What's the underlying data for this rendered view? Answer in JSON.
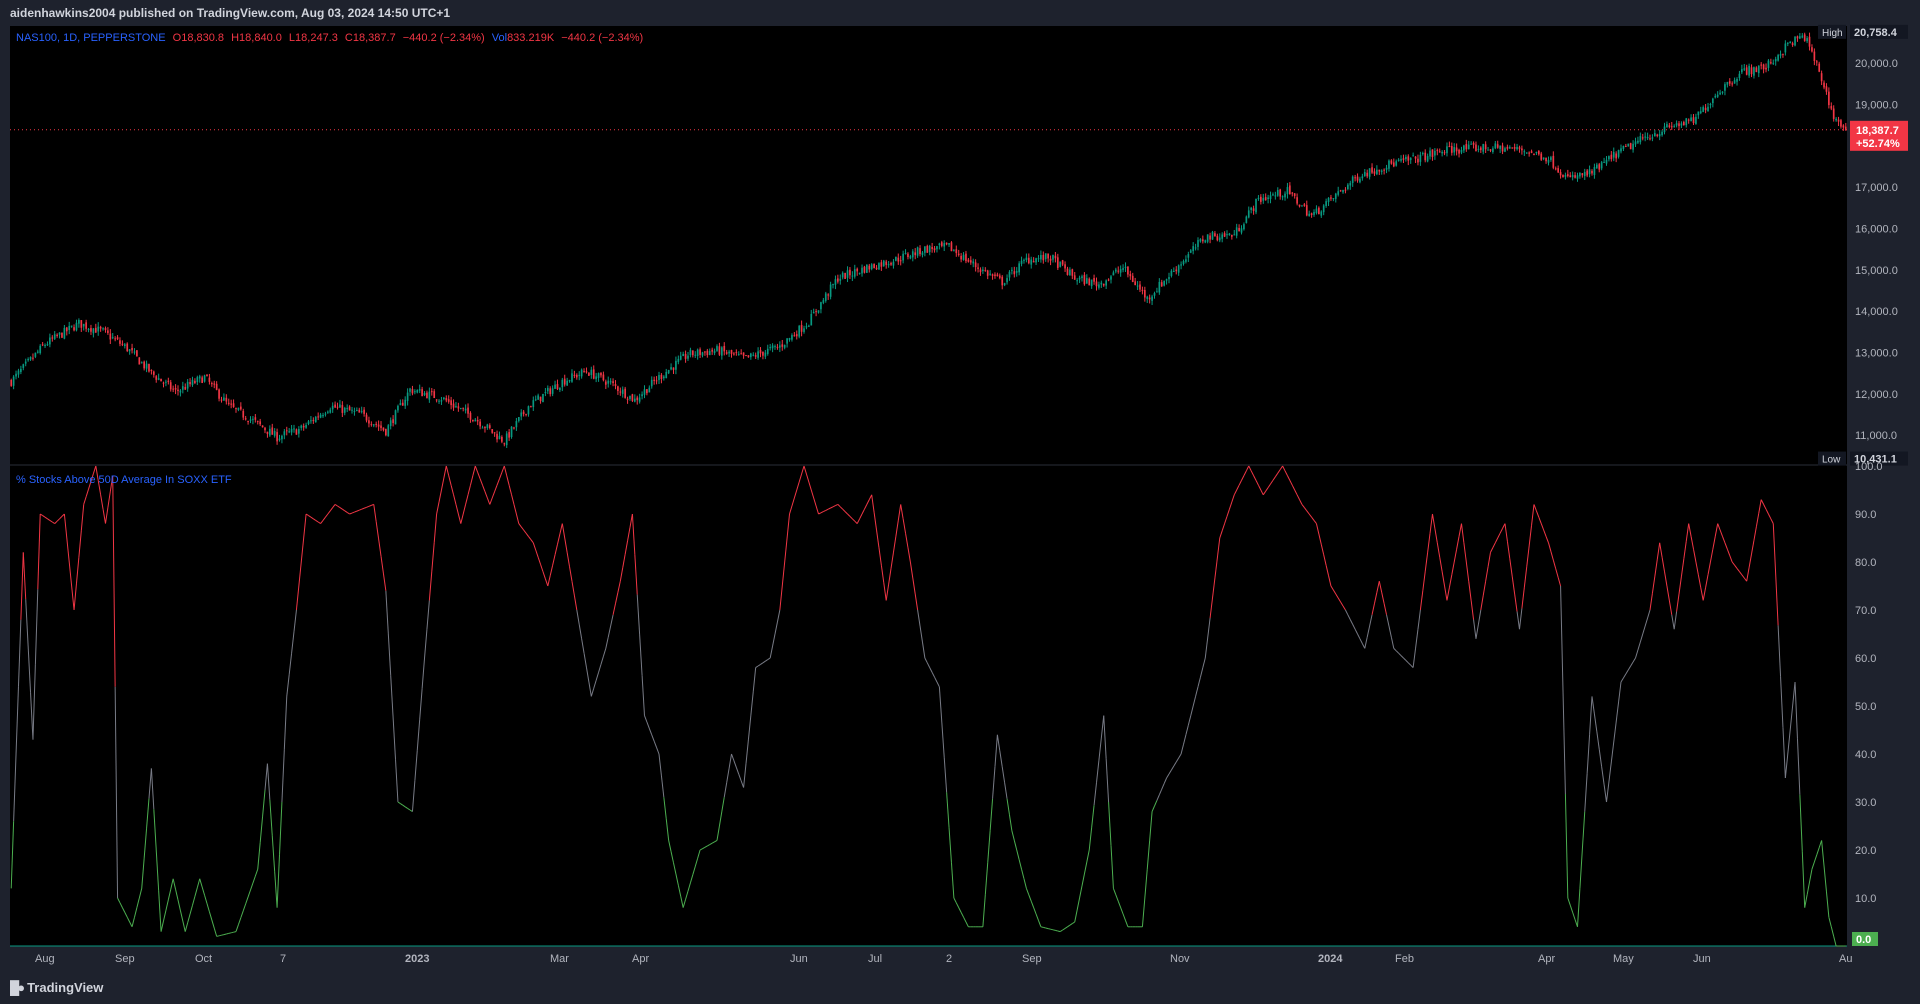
{
  "header": {
    "publisher": "aidenhawkins2004 published on TradingView.com, Aug 03, 2024 14:50 UTC+1"
  },
  "legend": {
    "symbol": "NAS100, 1D, PEPPERSTONE",
    "open": "O18,830.8",
    "high": "H18,840.0",
    "low": "L18,247.3",
    "close": "C18,387.7",
    "change": "−440.2 (−2.34%)",
    "volume_label": "Vol",
    "volume": "833.219K",
    "volume_change": "−440.2 (−2.34%)"
  },
  "indicator": {
    "title": "% Stocks Above 50D Average In SOXX ETF"
  },
  "price_axis": {
    "high_label": "High",
    "high_value": "20,758.4",
    "low_label": "Low",
    "low_value": "10,431.1",
    "last_price": "18,387.7",
    "last_change": "+52.74%",
    "ticks": [
      "20,000.0",
      "19,000.0",
      "17,000.0",
      "16,000.0",
      "15,000.0",
      "14,000.0",
      "13,000.0",
      "12,000.0",
      "11,000.0"
    ]
  },
  "indicator_axis": {
    "ticks": [
      "100.0",
      "90.0",
      "80.0",
      "70.0",
      "60.0",
      "50.0",
      "40.0",
      "30.0",
      "20.0",
      "10.0"
    ],
    "last_value": "0.0"
  },
  "time_axis": {
    "labels": [
      "Aug",
      "Sep",
      "Oct",
      "7",
      "2023",
      "Mar",
      "Apr",
      "Jun",
      "Jul",
      "2",
      "Sep",
      "Nov",
      "2024",
      "Feb",
      "Apr",
      "May",
      "Jun",
      "Au"
    ]
  },
  "brand": {
    "name": "TradingView"
  },
  "colors": {
    "up": "#089981",
    "down": "#f23645",
    "ind_high": "#f23645",
    "ind_mid": "#787b86",
    "ind_low": "#4caf50",
    "axis_text": "#b2b5be",
    "label_bg": "#131722",
    "last_price_bg": "#f23645",
    "zero_label_bg": "#4caf50"
  },
  "chart_data": [
    {
      "type": "candlestick",
      "symbol": "NAS100",
      "interval": "1D",
      "ylim": [
        10300,
        20900
      ],
      "x_labels": [
        "Aug",
        "Sep",
        "Oct",
        "7",
        "2023",
        "Mar",
        "Apr",
        "Jun",
        "Jul",
        "2",
        "Sep",
        "Nov",
        "2024",
        "Feb",
        "Apr",
        "May",
        "Jun",
        "Au"
      ],
      "path_keypoints": [
        [
          0,
          12300
        ],
        [
          14,
          13200
        ],
        [
          28,
          13700
        ],
        [
          38,
          13500
        ],
        [
          48,
          13100
        ],
        [
          58,
          12500
        ],
        [
          68,
          12050
        ],
        [
          80,
          12400
        ],
        [
          90,
          11700
        ],
        [
          100,
          11350
        ],
        [
          110,
          10950
        ],
        [
          120,
          11150
        ],
        [
          132,
          11700
        ],
        [
          145,
          11500
        ],
        [
          155,
          11100
        ],
        [
          165,
          12100
        ],
        [
          178,
          11900
        ],
        [
          192,
          11400
        ],
        [
          204,
          10850
        ],
        [
          214,
          11700
        ],
        [
          228,
          12300
        ],
        [
          238,
          12550
        ],
        [
          248,
          12250
        ],
        [
          258,
          11850
        ],
        [
          268,
          12400
        ],
        [
          280,
          12950
        ],
        [
          292,
          13050
        ],
        [
          304,
          12850
        ],
        [
          318,
          13150
        ],
        [
          330,
          13750
        ],
        [
          342,
          14800
        ],
        [
          354,
          15050
        ],
        [
          366,
          15250
        ],
        [
          378,
          15500
        ],
        [
          388,
          15550
        ],
        [
          400,
          15050
        ],
        [
          410,
          14700
        ],
        [
          420,
          15250
        ],
        [
          430,
          15300
        ],
        [
          440,
          14800
        ],
        [
          450,
          14650
        ],
        [
          460,
          15050
        ],
        [
          470,
          14300
        ],
        [
          482,
          15050
        ],
        [
          494,
          15800
        ],
        [
          506,
          15850
        ],
        [
          516,
          16700
        ],
        [
          528,
          16900
        ],
        [
          538,
          16300
        ],
        [
          548,
          16800
        ],
        [
          558,
          17300
        ],
        [
          570,
          17550
        ],
        [
          582,
          17700
        ],
        [
          594,
          17900
        ],
        [
          606,
          17950
        ],
        [
          616,
          17950
        ],
        [
          626,
          17900
        ],
        [
          636,
          17700
        ],
        [
          644,
          17200
        ],
        [
          654,
          17350
        ],
        [
          664,
          17800
        ],
        [
          676,
          18200
        ],
        [
          688,
          18500
        ],
        [
          696,
          18600
        ],
        [
          706,
          19300
        ],
        [
          716,
          19800
        ],
        [
          726,
          19900
        ],
        [
          736,
          20500
        ],
        [
          742,
          20650
        ],
        [
          748,
          19800
        ],
        [
          754,
          18700
        ],
        [
          759,
          18387.7
        ]
      ],
      "close": 18387.7,
      "high": 20758.4,
      "low": 10431.1,
      "last_change": "+52.74%"
    },
    {
      "type": "line",
      "title": "% Stocks Above 50D Average In SOXX ETF",
      "ylim": [
        0,
        100
      ],
      "bands": {
        "high_above": 70,
        "low_below": 30
      },
      "keypoints": [
        [
          0,
          12
        ],
        [
          5,
          82
        ],
        [
          9,
          43
        ],
        [
          12,
          90
        ],
        [
          18,
          88
        ],
        [
          22,
          90
        ],
        [
          26,
          70
        ],
        [
          30,
          92
        ],
        [
          35,
          100
        ],
        [
          39,
          88
        ],
        [
          42,
          98
        ],
        [
          44,
          10
        ],
        [
          50,
          4
        ],
        [
          54,
          12
        ],
        [
          58,
          37
        ],
        [
          62,
          3
        ],
        [
          67,
          14
        ],
        [
          72,
          3
        ],
        [
          78,
          14
        ],
        [
          85,
          2
        ],
        [
          93,
          3
        ],
        [
          102,
          16
        ],
        [
          106,
          38
        ],
        [
          110,
          8
        ],
        [
          114,
          52
        ],
        [
          118,
          70
        ],
        [
          122,
          90
        ],
        [
          128,
          88
        ],
        [
          134,
          92
        ],
        [
          140,
          90
        ],
        [
          150,
          92
        ],
        [
          155,
          74
        ],
        [
          160,
          30
        ],
        [
          166,
          28
        ],
        [
          171,
          60
        ],
        [
          176,
          90
        ],
        [
          180,
          100
        ],
        [
          186,
          88
        ],
        [
          192,
          100
        ],
        [
          198,
          92
        ],
        [
          204,
          100
        ],
        [
          210,
          88
        ],
        [
          216,
          84
        ],
        [
          222,
          75
        ],
        [
          228,
          88
        ],
        [
          234,
          70
        ],
        [
          240,
          52
        ],
        [
          246,
          62
        ],
        [
          252,
          76
        ],
        [
          257,
          90
        ],
        [
          262,
          48
        ],
        [
          268,
          40
        ],
        [
          272,
          22
        ],
        [
          278,
          8
        ],
        [
          285,
          20
        ],
        [
          292,
          22
        ],
        [
          298,
          40
        ],
        [
          303,
          33
        ],
        [
          308,
          58
        ],
        [
          314,
          60
        ],
        [
          318,
          70
        ],
        [
          322,
          90
        ],
        [
          328,
          100
        ],
        [
          334,
          90
        ],
        [
          342,
          92
        ],
        [
          350,
          88
        ],
        [
          356,
          94
        ],
        [
          362,
          72
        ],
        [
          368,
          92
        ],
        [
          372,
          80
        ],
        [
          378,
          60
        ],
        [
          384,
          54
        ],
        [
          390,
          10
        ],
        [
          396,
          4
        ],
        [
          402,
          4
        ],
        [
          408,
          44
        ],
        [
          414,
          24
        ],
        [
          420,
          12
        ],
        [
          426,
          4
        ],
        [
          434,
          3
        ],
        [
          440,
          5
        ],
        [
          446,
          20
        ],
        [
          452,
          48
        ],
        [
          456,
          12
        ],
        [
          462,
          4
        ],
        [
          468,
          4
        ],
        [
          472,
          28
        ],
        [
          478,
          35
        ],
        [
          484,
          40
        ],
        [
          490,
          52
        ],
        [
          494,
          60
        ],
        [
          500,
          85
        ],
        [
          506,
          94
        ],
        [
          512,
          100
        ],
        [
          518,
          94
        ],
        [
          526,
          100
        ],
        [
          534,
          92
        ],
        [
          540,
          88
        ],
        [
          546,
          75
        ],
        [
          552,
          70
        ],
        [
          560,
          62
        ],
        [
          566,
          76
        ],
        [
          572,
          62
        ],
        [
          580,
          58
        ],
        [
          588,
          90
        ],
        [
          594,
          72
        ],
        [
          600,
          88
        ],
        [
          606,
          64
        ],
        [
          612,
          82
        ],
        [
          618,
          88
        ],
        [
          624,
          66
        ],
        [
          630,
          92
        ],
        [
          636,
          84
        ],
        [
          641,
          75
        ],
        [
          644,
          10
        ],
        [
          648,
          4
        ],
        [
          654,
          52
        ],
        [
          660,
          30
        ],
        [
          666,
          55
        ],
        [
          672,
          60
        ],
        [
          678,
          70
        ],
        [
          682,
          84
        ],
        [
          688,
          66
        ],
        [
          694,
          88
        ],
        [
          700,
          72
        ],
        [
          706,
          88
        ],
        [
          712,
          80
        ],
        [
          718,
          76
        ],
        [
          724,
          93
        ],
        [
          729,
          88
        ],
        [
          734,
          35
        ],
        [
          738,
          55
        ],
        [
          742,
          8
        ],
        [
          745,
          16
        ],
        [
          749,
          22
        ],
        [
          752,
          6
        ],
        [
          755,
          0
        ]
      ]
    }
  ]
}
